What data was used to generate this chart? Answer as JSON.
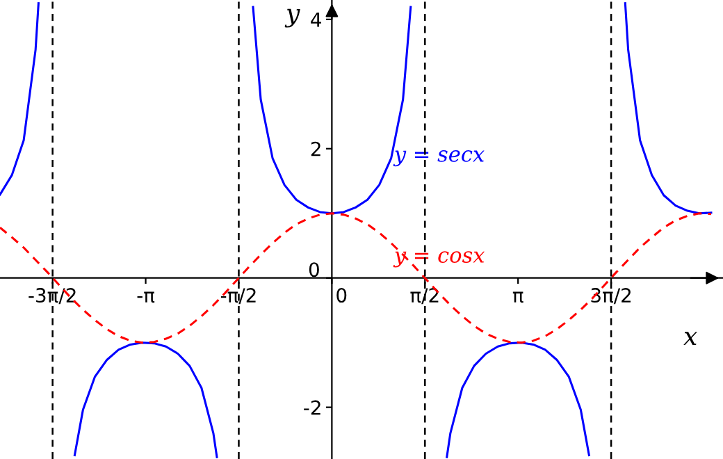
{
  "chart_data": {
    "type": "line",
    "xlabel": "x",
    "ylabel": "y",
    "xlim": [
      -5.6,
      6.6
    ],
    "ylim": [
      -2.8,
      4.3
    ],
    "xticks": [
      {
        "value": -4.7124,
        "label": "-3π/2"
      },
      {
        "value": -3.1416,
        "label": "-π"
      },
      {
        "value": -1.5708,
        "label": "-π/2"
      },
      0,
      {
        "value": 1.5708,
        "label": "π/2"
      },
      {
        "value": 3.1416,
        "label": "π"
      },
      {
        "value": 4.7124,
        "label": "3π/2"
      }
    ],
    "yticks": [
      -2,
      0,
      2,
      4
    ],
    "grid": false,
    "legend": false,
    "marker": "none",
    "ref_lines": [
      {
        "axis": "x",
        "value": -4.7124,
        "color": "#000000",
        "line_style": "dashed"
      },
      {
        "axis": "x",
        "value": -1.5708,
        "color": "#000000",
        "line_style": "dashed"
      },
      {
        "axis": "x",
        "value": 1.5708,
        "color": "#000000",
        "line_style": "dashed"
      },
      {
        "axis": "x",
        "value": 4.7124,
        "color": "#000000",
        "line_style": "dashed"
      }
    ],
    "series": [
      {
        "name": "y = secx",
        "color": "#0000ff",
        "line_style": "solid",
        "x": [
          -5.6,
          -5.4,
          -5.2,
          -5.0,
          -4.95,
          -4.6,
          -4.34,
          -4.2,
          -4.0,
          -3.8,
          -3.6,
          -3.4,
          -3.2,
          -3.0,
          -2.8,
          -2.6,
          -2.4,
          -2.2,
          -2.0,
          -1.94,
          -1.6,
          -1.33,
          -1.2,
          -1.0,
          -0.8,
          -0.6,
          -0.4,
          -0.2,
          0,
          0.2,
          0.4,
          0.6,
          0.8,
          1.0,
          1.2,
          1.33,
          1.6,
          1.94,
          2.0,
          2.2,
          2.4,
          2.6,
          2.8,
          3.0,
          3.2,
          3.4,
          3.6,
          3.8,
          4.0,
          4.2,
          4.34,
          4.6,
          4.95,
          5.0,
          5.2,
          5.4,
          5.6,
          5.8,
          6.0,
          6.2,
          6.4
        ],
        "values": [
          1.29,
          1.59,
          2.13,
          3.53,
          4.25,
          null,
          -2.74,
          -2.04,
          -1.53,
          -1.27,
          -1.11,
          -1.03,
          -1.0,
          -1.01,
          -1.06,
          -1.17,
          -1.36,
          -1.7,
          -2.4,
          -2.77,
          null,
          4.19,
          2.76,
          1.85,
          1.44,
          1.21,
          1.09,
          1.02,
          1.0,
          1.02,
          1.09,
          1.21,
          1.44,
          1.85,
          2.76,
          4.19,
          null,
          -2.77,
          -2.4,
          -1.7,
          -1.36,
          -1.17,
          -1.06,
          -1.01,
          -1.0,
          -1.03,
          -1.11,
          -1.27,
          -1.53,
          -2.04,
          -2.74,
          null,
          4.25,
          3.53,
          2.13,
          1.59,
          1.28,
          1.12,
          1.04,
          1.0,
          1.01
        ]
      },
      {
        "name": "y = cosx",
        "color": "#ff0000",
        "line_style": "dashed",
        "x": [
          -5.6,
          -5.4,
          -5.2,
          -5.0,
          -4.8,
          -4.6,
          -4.4,
          -4.2,
          -4.0,
          -3.8,
          -3.6,
          -3.4,
          -3.2,
          -3.0,
          -2.8,
          -2.6,
          -2.4,
          -2.2,
          -2.0,
          -1.8,
          -1.6,
          -1.4,
          -1.2,
          -1.0,
          -0.8,
          -0.6,
          -0.4,
          -0.2,
          0,
          0.2,
          0.4,
          0.6,
          0.8,
          1.0,
          1.2,
          1.4,
          1.6,
          1.8,
          2.0,
          2.2,
          2.4,
          2.6,
          2.8,
          3.0,
          3.2,
          3.4,
          3.6,
          3.8,
          4.0,
          4.2,
          4.4,
          4.6,
          4.8,
          5.0,
          5.2,
          5.4,
          5.6,
          5.8,
          6.0,
          6.2,
          6.4
        ],
        "values": [
          0.78,
          0.63,
          0.47,
          0.28,
          0.09,
          -0.11,
          -0.31,
          -0.49,
          -0.65,
          -0.79,
          -0.9,
          -0.97,
          -1.0,
          -0.99,
          -0.94,
          -0.86,
          -0.74,
          -0.59,
          -0.42,
          -0.23,
          -0.03,
          0.17,
          0.36,
          0.54,
          0.7,
          0.83,
          0.92,
          0.98,
          1.0,
          0.98,
          0.92,
          0.83,
          0.7,
          0.54,
          0.36,
          0.17,
          -0.03,
          -0.23,
          -0.42,
          -0.59,
          -0.74,
          -0.86,
          -0.94,
          -0.99,
          -1.0,
          -0.97,
          -0.9,
          -0.79,
          -0.65,
          -0.49,
          -0.31,
          -0.11,
          0.09,
          0.28,
          0.47,
          0.63,
          0.78,
          0.89,
          0.96,
          1.0,
          0.99
        ]
      }
    ]
  }
}
